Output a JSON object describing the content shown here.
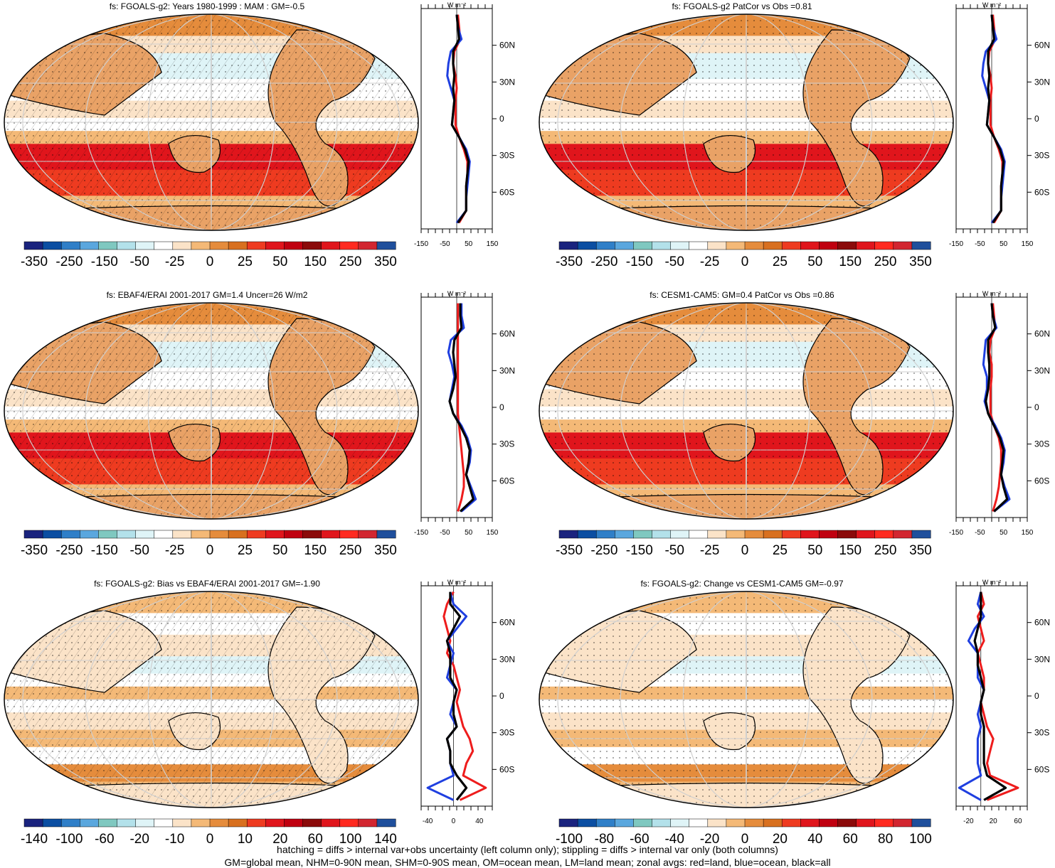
{
  "colors": {
    "cbar_base": [
      "#1a237e",
      "#0b4ea2",
      "#2f7fc8",
      "#5aa7de",
      "#7fc8c0",
      "#b3e1ea",
      "#dff4f7",
      "#ffffff",
      "#fbe3c8",
      "#f4b977",
      "#e58c3c",
      "#d8701f",
      "#ee3b20",
      "#e0151c",
      "#c00010",
      "#8b0a0a",
      "#e0151c",
      "#ff2a20",
      "#d22630",
      "#1f4f9c"
    ],
    "land_line": "#000000",
    "zonal_land": "#ee1c1c",
    "zonal_ocean": "#1f3fe0",
    "zonal_all": "#000000"
  },
  "panels": [
    {
      "title": "fs: FGOALS-g2: Years 1980-1999 : MAM : GM=-0.5",
      "cbar_labels": [
        "-350",
        "-250",
        "-150",
        "-50",
        "-25",
        "0",
        "25",
        "50",
        "150",
        "250",
        "350"
      ],
      "zonal_axis": {
        "x_ticks": [
          "-150",
          "-50",
          "50",
          "150"
        ],
        "x_range": [
          -150,
          150
        ],
        "units": "W m⁻²"
      },
      "lat_labels": [
        "60N",
        "30N",
        "0",
        "30S",
        "60S"
      ],
      "chart_data": {
        "type": "line",
        "xlabel": "",
        "ylabel": "",
        "x_units": "W m⁻²",
        "xlim": [
          -150,
          150
        ],
        "ylim": [
          -90,
          90
        ],
        "lat": [
          85,
          75,
          65,
          55,
          45,
          35,
          25,
          15,
          5,
          -5,
          -15,
          -25,
          -35,
          -45,
          -55,
          -65,
          -75,
          -85
        ],
        "series": [
          {
            "values": [
              5,
              10,
              15,
              -10,
              -15,
              -5,
              0,
              -5,
              -5,
              -5,
              10,
              30,
              45,
              45,
              40,
              40,
              40,
              10
            ]
          },
          {
            "values": [
              0,
              5,
              20,
              -25,
              -35,
              -40,
              -25,
              -10,
              -15,
              -20,
              10,
              40,
              55,
              50,
              45,
              40,
              40,
              0
            ]
          },
          {
            "values": [
              0,
              5,
              10,
              -15,
              -15,
              -10,
              -15,
              -10,
              -15,
              -20,
              10,
              35,
              50,
              45,
              40,
              40,
              40,
              5
            ]
          }
        ]
      }
    },
    {
      "title": "fs: FGOALS-g2 PatCor vs Obs =0.81",
      "cbar_labels": [
        "-350",
        "-250",
        "-150",
        "-50",
        "-25",
        "0",
        "25",
        "50",
        "150",
        "250",
        "350"
      ],
      "zonal_axis": {
        "x_ticks": [
          "-150",
          "-50",
          "50",
          "150"
        ],
        "x_range": [
          -150,
          150
        ],
        "units": "W m⁻²"
      },
      "lat_labels": [
        "60N",
        "30N",
        "0",
        "30S",
        "60S"
      ],
      "chart_data": {
        "type": "line",
        "xlabel": "",
        "ylabel": "",
        "x_units": "W m⁻²",
        "xlim": [
          -150,
          150
        ],
        "ylim": [
          -90,
          90
        ],
        "lat": [
          85,
          75,
          65,
          55,
          45,
          35,
          25,
          15,
          5,
          -5,
          -15,
          -25,
          -35,
          -45,
          -55,
          -65,
          -75,
          -85
        ],
        "series": [
          {
            "values": [
              5,
              10,
              15,
              -10,
              -15,
              -5,
              0,
              -5,
              -5,
              -5,
              10,
              30,
              45,
              45,
              40,
              40,
              40,
              10
            ]
          },
          {
            "values": [
              0,
              5,
              20,
              -25,
              -35,
              -40,
              -25,
              -10,
              -15,
              -20,
              10,
              40,
              55,
              50,
              45,
              40,
              40,
              0
            ]
          },
          {
            "values": [
              0,
              5,
              10,
              -15,
              -15,
              -10,
              -15,
              -10,
              -15,
              -20,
              10,
              35,
              50,
              45,
              40,
              40,
              40,
              5
            ]
          }
        ]
      }
    },
    {
      "title": "fs: EBAF4/ERAI 2001-2017 GM=1.4 Uncer=26 W/m2",
      "cbar_labels": [
        "-350",
        "-250",
        "-150",
        "-50",
        "-25",
        "0",
        "25",
        "50",
        "150",
        "250",
        "350"
      ],
      "zonal_axis": {
        "x_ticks": [
          "-150",
          "-50",
          "50",
          "150"
        ],
        "x_range": [
          -150,
          150
        ],
        "units": "W m⁻²"
      },
      "lat_labels": [
        "60N",
        "30N",
        "0",
        "30S",
        "60S"
      ],
      "chart_data": {
        "type": "line",
        "xlabel": "",
        "ylabel": "",
        "x_units": "W m⁻²",
        "xlim": [
          -150,
          150
        ],
        "ylim": [
          -90,
          90
        ],
        "lat": [
          85,
          75,
          65,
          55,
          45,
          35,
          25,
          15,
          5,
          -5,
          -15,
          -25,
          -35,
          -45,
          -55,
          -65,
          -75,
          -85
        ],
        "series": [
          {
            "values": [
              5,
              5,
              5,
              5,
              5,
              5,
              5,
              5,
              5,
              5,
              10,
              15,
              20,
              25,
              30,
              30,
              20,
              5
            ]
          },
          {
            "values": [
              20,
              20,
              30,
              -25,
              -35,
              -20,
              -10,
              -20,
              -30,
              -15,
              20,
              45,
              60,
              55,
              40,
              60,
              80,
              20
            ]
          },
          {
            "values": [
              15,
              15,
              20,
              -10,
              -15,
              -10,
              -5,
              -15,
              -30,
              -15,
              15,
              40,
              55,
              50,
              40,
              55,
              70,
              15
            ]
          }
        ]
      }
    },
    {
      "title": "fs: CESM1-CAM5: GM=0.4 PatCor vs Obs =0.86",
      "cbar_labels": [
        "-350",
        "-250",
        "-150",
        "-50",
        "-25",
        "0",
        "25",
        "50",
        "150",
        "250",
        "350"
      ],
      "zonal_axis": {
        "x_ticks": [
          "-150",
          "-50",
          "50",
          "150"
        ],
        "x_range": [
          -150,
          150
        ],
        "units": "W m⁻²"
      },
      "lat_labels": [
        "60N",
        "30N",
        "0",
        "30S",
        "60S"
      ],
      "chart_data": {
        "type": "line",
        "xlabel": "",
        "ylabel": "",
        "x_units": "W m⁻²",
        "xlim": [
          -150,
          150
        ],
        "ylim": [
          -90,
          90
        ],
        "lat": [
          85,
          75,
          65,
          55,
          45,
          35,
          25,
          15,
          5,
          -5,
          -15,
          -25,
          -35,
          -45,
          -55,
          -65,
          -75,
          -85
        ],
        "series": [
          {
            "values": [
              5,
              10,
              15,
              -5,
              -10,
              0,
              0,
              -5,
              -5,
              -5,
              10,
              30,
              40,
              40,
              35,
              30,
              20,
              5
            ]
          },
          {
            "values": [
              0,
              5,
              20,
              -25,
              -30,
              -35,
              -20,
              -20,
              -30,
              -15,
              15,
              40,
              55,
              50,
              40,
              55,
              75,
              10
            ]
          },
          {
            "values": [
              0,
              5,
              15,
              -15,
              -15,
              -10,
              -10,
              -15,
              -25,
              -15,
              10,
              35,
              50,
              45,
              40,
              50,
              65,
              10
            ]
          }
        ]
      }
    },
    {
      "title": "fs: FGOALS-g2: Bias vs EBAF4/ERAI 2001-2017 GM=-1.90",
      "cbar_labels": [
        "-140",
        "-100",
        "-60",
        "-20",
        "-10",
        "0",
        "10",
        "20",
        "60",
        "100",
        "140"
      ],
      "zonal_axis": {
        "x_ticks": [
          "-40",
          "0",
          "40"
        ],
        "x_range": [
          -50,
          60
        ],
        "units": "W m⁻²"
      },
      "lat_labels": [
        "60N",
        "30N",
        "0",
        "30S",
        "60S"
      ],
      "chart_data": {
        "type": "line",
        "xlabel": "",
        "ylabel": "",
        "x_units": "W m⁻²",
        "xlim": [
          -50,
          60
        ],
        "ylim": [
          -90,
          90
        ],
        "lat": [
          85,
          75,
          65,
          55,
          45,
          35,
          25,
          15,
          5,
          -5,
          -15,
          -25,
          -35,
          -45,
          -55,
          -65,
          -75,
          -85
        ],
        "series": [
          {
            "values": [
              0,
              -10,
              -15,
              -10,
              -5,
              -10,
              0,
              5,
              10,
              5,
              10,
              15,
              25,
              30,
              20,
              15,
              50,
              10
            ]
          },
          {
            "values": [
              -5,
              0,
              20,
              5,
              -10,
              0,
              -5,
              -10,
              5,
              0,
              -5,
              5,
              -10,
              -5,
              -5,
              0,
              -40,
              0
            ]
          },
          {
            "values": [
              -5,
              -5,
              10,
              0,
              -10,
              -5,
              -5,
              -5,
              5,
              0,
              0,
              5,
              -10,
              -5,
              -5,
              5,
              20,
              5
            ]
          }
        ]
      }
    },
    {
      "title": "fs: FGOALS-g2: Change vs CESM1-CAM5 GM=-0.97",
      "cbar_labels": [
        "-100",
        "-80",
        "-60",
        "-40",
        "-20",
        "0",
        "20",
        "40",
        "60",
        "80",
        "100"
      ],
      "zonal_axis": {
        "x_ticks": [
          "-20",
          "20",
          "60"
        ],
        "x_range": [
          -40,
          75
        ],
        "units": "W m⁻²"
      },
      "lat_labels": [
        "60N",
        "30N",
        "0",
        "30S",
        "60S"
      ],
      "chart_data": {
        "type": "line",
        "xlabel": "",
        "ylabel": "",
        "x_units": "W m⁻²",
        "xlim": [
          -40,
          75
        ],
        "ylim": [
          -90,
          90
        ],
        "lat": [
          85,
          75,
          65,
          55,
          45,
          35,
          25,
          15,
          5,
          -5,
          -15,
          -25,
          -35,
          -45,
          -55,
          -65,
          -75,
          -85
        ],
        "series": [
          {
            "values": [
              0,
              5,
              -5,
              0,
              5,
              -5,
              0,
              5,
              5,
              0,
              5,
              10,
              20,
              15,
              10,
              15,
              60,
              10
            ]
          },
          {
            "values": [
              0,
              -5,
              5,
              -10,
              -20,
              -5,
              -5,
              -5,
              5,
              0,
              -5,
              0,
              -5,
              -5,
              -5,
              0,
              -35,
              0
            ]
          },
          {
            "values": [
              0,
              0,
              0,
              -5,
              -10,
              -5,
              -5,
              0,
              5,
              0,
              0,
              5,
              5,
              5,
              5,
              10,
              40,
              5
            ]
          }
        ]
      }
    }
  ],
  "footer": {
    "line1": "hatching = diffs > internal var+obs uncertainty (left column only); stippling = diffs > internal var only (both columns)",
    "line2": "GM=global mean, NHM=0-90N mean, SHM=0-90S mean, OM=ocean mean, LM=land mean; zonal avgs: red=land, blue=ocean, black=all"
  }
}
